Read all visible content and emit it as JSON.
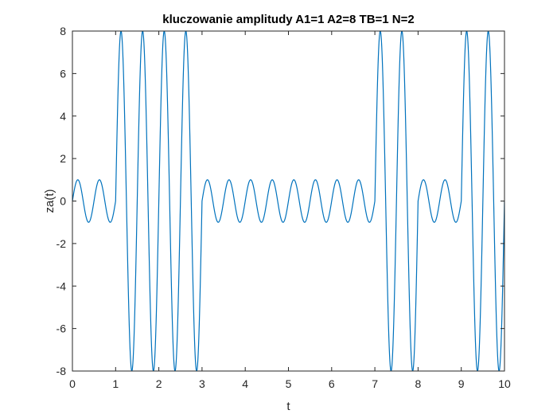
{
  "chart_data": {
    "type": "line",
    "title": "kluczowanie amplitudy A1=1 A2=8 TB=1 N=2",
    "xlabel": "t",
    "ylabel": "za(t)",
    "xlim": [
      0,
      10
    ],
    "ylim": [
      -8,
      8
    ],
    "xticks": [
      0,
      1,
      2,
      3,
      4,
      5,
      6,
      7,
      8,
      9,
      10
    ],
    "yticks": [
      -8,
      -6,
      -4,
      -2,
      0,
      2,
      4,
      6,
      8
    ],
    "grid": false,
    "legend": "none",
    "series": [
      {
        "color": "#0072BD",
        "function": "A(t) * sin(2*pi*N*t/TB)",
        "N": 2,
        "TB": 1,
        "amplitude_levels": [
          1,
          8
        ],
        "segments": [
          {
            "t_start": 0,
            "t_end": 1,
            "amplitude": 1
          },
          {
            "t_start": 1,
            "t_end": 3,
            "amplitude": 8
          },
          {
            "t_start": 3,
            "t_end": 7,
            "amplitude": 1
          },
          {
            "t_start": 7,
            "t_end": 8,
            "amplitude": 8
          },
          {
            "t_start": 8,
            "t_end": 9,
            "amplitude": 1
          },
          {
            "t_start": 9,
            "t_end": 10,
            "amplitude": 8
          }
        ]
      }
    ]
  }
}
